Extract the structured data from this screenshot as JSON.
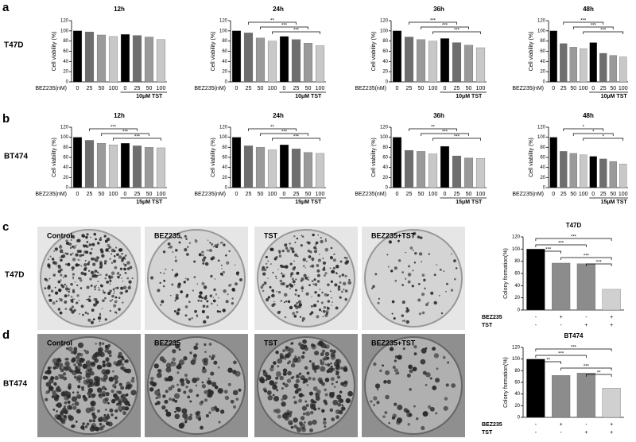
{
  "panel_labels": [
    "a",
    "b",
    "c",
    "d"
  ],
  "row_labels": [
    "T47D",
    "BT474",
    "T47D",
    "BT474"
  ],
  "photo_labels": [
    "Control",
    "BEZ235",
    "TST",
    "BEZ235+TST"
  ],
  "chart_data": [
    {
      "type": "bar",
      "title": "12h",
      "ylabel": "Cell viability (%)",
      "xlabel": "BEZ235(nM)",
      "group_label": "10μM TST",
      "categories": [
        "0",
        "25",
        "50",
        "100",
        "0",
        "25",
        "50",
        "100"
      ],
      "values": [
        100,
        98,
        92,
        89,
        93,
        91,
        88,
        83
      ],
      "colors": [
        "#000000",
        "#6e6e6e",
        "#9a9a9a",
        "#c8c8c8",
        "#000000",
        "#6e6e6e",
        "#9a9a9a",
        "#c8c8c8"
      ],
      "ylim": [
        0,
        120
      ],
      "yticks": [
        0,
        20,
        40,
        60,
        80,
        100,
        120
      ],
      "annotations": []
    },
    {
      "type": "bar",
      "title": "24h",
      "ylabel": "Cell viability (%)",
      "xlabel": "BEZ235(nM)",
      "group_label": "10μM TST",
      "categories": [
        "0",
        "25",
        "50",
        "100",
        "0",
        "25",
        "50",
        "100"
      ],
      "values": [
        100,
        96,
        86,
        80,
        89,
        83,
        76,
        71
      ],
      "colors": [
        "#000000",
        "#6e6e6e",
        "#9a9a9a",
        "#c8c8c8",
        "#000000",
        "#6e6e6e",
        "#9a9a9a",
        "#c8c8c8"
      ],
      "ylim": [
        0,
        120
      ],
      "yticks": [
        0,
        20,
        40,
        60,
        80,
        100,
        120
      ],
      "annotations": [
        {
          "text": "**",
          "between": [
            1,
            5
          ]
        },
        {
          "text": "***",
          "between": [
            2,
            6
          ]
        },
        {
          "text": "***",
          "between": [
            3,
            7
          ]
        }
      ]
    },
    {
      "type": "bar",
      "title": "36h",
      "ylabel": "Cell viability (%)",
      "xlabel": "BEZ235(nM)",
      "group_label": "10μM TST",
      "categories": [
        "0",
        "25",
        "50",
        "100",
        "0",
        "25",
        "50",
        "100"
      ],
      "values": [
        100,
        88,
        83,
        80,
        85,
        77,
        72,
        67
      ],
      "colors": [
        "#000000",
        "#6e6e6e",
        "#9a9a9a",
        "#c8c8c8",
        "#000000",
        "#6e6e6e",
        "#9a9a9a",
        "#c8c8c8"
      ],
      "ylim": [
        0,
        120
      ],
      "yticks": [
        0,
        20,
        40,
        60,
        80,
        100,
        120
      ],
      "annotations": [
        {
          "text": "***",
          "between": [
            1,
            5
          ]
        },
        {
          "text": "***",
          "between": [
            2,
            6
          ]
        },
        {
          "text": "***",
          "between": [
            3,
            7
          ]
        }
      ]
    },
    {
      "type": "bar",
      "title": "48h",
      "ylabel": "Cell viability (%)",
      "xlabel": "BEZ235(nM)",
      "group_label": "10μM TST",
      "categories": [
        "0",
        "25",
        "50",
        "100",
        "0",
        "25",
        "50",
        "100"
      ],
      "values": [
        100,
        75,
        68,
        65,
        77,
        56,
        52,
        49
      ],
      "colors": [
        "#000000",
        "#6e6e6e",
        "#9a9a9a",
        "#c8c8c8",
        "#000000",
        "#6e6e6e",
        "#9a9a9a",
        "#c8c8c8"
      ],
      "ylim": [
        0,
        120
      ],
      "yticks": [
        0,
        20,
        40,
        60,
        80,
        100,
        120
      ],
      "annotations": [
        {
          "text": "***",
          "between": [
            1,
            5
          ]
        },
        {
          "text": "***",
          "between": [
            2,
            6
          ]
        },
        {
          "text": "***",
          "between": [
            3,
            7
          ]
        }
      ]
    },
    {
      "type": "bar",
      "title": "12h",
      "ylabel": "Cell viability (%)",
      "xlabel": "BEZ235(nM)",
      "group_label": "15μM TST",
      "categories": [
        "0",
        "25",
        "50",
        "100",
        "0",
        "25",
        "50",
        "100"
      ],
      "values": [
        100,
        94,
        88,
        85,
        88,
        83,
        80,
        79
      ],
      "colors": [
        "#000000",
        "#6e6e6e",
        "#9a9a9a",
        "#c8c8c8",
        "#000000",
        "#6e6e6e",
        "#9a9a9a",
        "#c8c8c8"
      ],
      "ylim": [
        0,
        120
      ],
      "yticks": [
        0,
        20,
        40,
        60,
        80,
        100,
        120
      ],
      "annotations": [
        {
          "text": "***",
          "between": [
            1,
            5
          ]
        },
        {
          "text": "***",
          "between": [
            2,
            6
          ]
        },
        {
          "text": "***",
          "between": [
            3,
            7
          ]
        }
      ]
    },
    {
      "type": "bar",
      "title": "24h",
      "ylabel": "Cell viability (%)",
      "xlabel": "BEZ235(nM)",
      "group_label": "15μM TST",
      "categories": [
        "0",
        "25",
        "50",
        "100",
        "0",
        "25",
        "50",
        "100"
      ],
      "values": [
        100,
        83,
        80,
        75,
        85,
        77,
        70,
        68
      ],
      "colors": [
        "#000000",
        "#6e6e6e",
        "#9a9a9a",
        "#c8c8c8",
        "#000000",
        "#6e6e6e",
        "#9a9a9a",
        "#c8c8c8"
      ],
      "ylim": [
        0,
        120
      ],
      "yticks": [
        0,
        20,
        40,
        60,
        80,
        100,
        120
      ],
      "annotations": [
        {
          "text": "**",
          "between": [
            1,
            5
          ]
        },
        {
          "text": "***",
          "between": [
            2,
            6
          ]
        },
        {
          "text": "***",
          "between": [
            3,
            7
          ]
        }
      ]
    },
    {
      "type": "bar",
      "title": "36h",
      "ylabel": "Cell viability (%)",
      "xlabel": "BEZ235(nM)",
      "group_label": "15μM TST",
      "categories": [
        "0",
        "25",
        "50",
        "100",
        "0",
        "25",
        "50",
        "100"
      ],
      "values": [
        100,
        74,
        72,
        67,
        82,
        63,
        59,
        58
      ],
      "colors": [
        "#000000",
        "#6e6e6e",
        "#9a9a9a",
        "#c8c8c8",
        "#000000",
        "#6e6e6e",
        "#9a9a9a",
        "#c8c8c8"
      ],
      "ylim": [
        0,
        120
      ],
      "yticks": [
        0,
        20,
        40,
        60,
        80,
        100,
        120
      ],
      "annotations": [
        {
          "text": "**",
          "between": [
            1,
            5
          ]
        },
        {
          "text": "***",
          "between": [
            2,
            6
          ]
        },
        {
          "text": "***",
          "between": [
            3,
            7
          ]
        }
      ]
    },
    {
      "type": "bar",
      "title": "48h",
      "ylabel": "Cell viability (%)",
      "xlabel": "BEZ235(nM)",
      "group_label": "15μM TST",
      "categories": [
        "0",
        "25",
        "50",
        "100",
        "0",
        "25",
        "50",
        "100"
      ],
      "values": [
        100,
        72,
        68,
        65,
        62,
        57,
        52,
        47
      ],
      "colors": [
        "#000000",
        "#6e6e6e",
        "#9a9a9a",
        "#c8c8c8",
        "#000000",
        "#6e6e6e",
        "#9a9a9a",
        "#c8c8c8"
      ],
      "ylim": [
        0,
        120
      ],
      "yticks": [
        0,
        20,
        40,
        60,
        80,
        100,
        120
      ],
      "annotations": [
        {
          "text": "*",
          "between": [
            1,
            5
          ]
        },
        {
          "text": "*",
          "between": [
            2,
            6
          ]
        },
        {
          "text": "*",
          "between": [
            3,
            7
          ]
        }
      ]
    },
    {
      "type": "bar",
      "title": "T47D",
      "ylabel": "Colony formation(%)",
      "factors": [
        {
          "name": "BEZ235",
          "levels": [
            "-",
            "+",
            "-",
            "+"
          ]
        },
        {
          "name": "TST",
          "levels": [
            "-",
            "-",
            "+",
            "+"
          ]
        }
      ],
      "values": [
        100,
        77,
        76,
        34
      ],
      "colors": [
        "#000000",
        "#8c8c8c",
        "#8c8c8c",
        "#d0d0d0"
      ],
      "ylim": [
        0,
        120
      ],
      "yticks": [
        0,
        20,
        40,
        60,
        80,
        100,
        120
      ],
      "annotations": [
        {
          "text": "***",
          "between": [
            0,
            3
          ]
        },
        {
          "text": "***",
          "between": [
            0,
            2
          ]
        },
        {
          "text": "***",
          "between": [
            0,
            1
          ]
        },
        {
          "text": "***",
          "between": [
            1,
            3
          ]
        },
        {
          "text": "***",
          "between": [
            2,
            3
          ]
        }
      ]
    },
    {
      "type": "bar",
      "title": "BT474",
      "ylabel": "Colony formation(%)",
      "factors": [
        {
          "name": "BEZ235",
          "levels": [
            "-",
            "+",
            "-",
            "+"
          ]
        },
        {
          "name": "TST",
          "levels": [
            "-",
            "-",
            "+",
            "+"
          ]
        }
      ],
      "values": [
        100,
        72,
        76,
        50
      ],
      "colors": [
        "#000000",
        "#8c8c8c",
        "#8c8c8c",
        "#d0d0d0"
      ],
      "ylim": [
        0,
        120
      ],
      "yticks": [
        0,
        20,
        40,
        60,
        80,
        100,
        120
      ],
      "annotations": [
        {
          "text": "***",
          "between": [
            0,
            3
          ]
        },
        {
          "text": "***",
          "between": [
            0,
            2
          ]
        },
        {
          "text": "**",
          "between": [
            0,
            1
          ]
        },
        {
          "text": "***",
          "between": [
            1,
            3
          ]
        },
        {
          "text": "**",
          "between": [
            2,
            3
          ]
        }
      ]
    }
  ]
}
